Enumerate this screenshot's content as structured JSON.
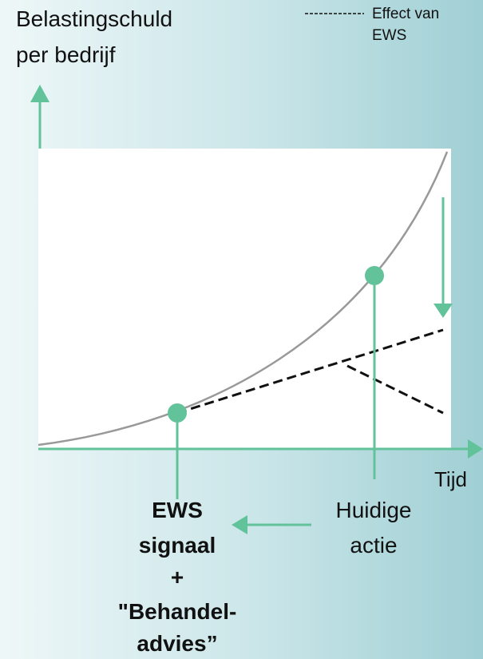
{
  "axis": {
    "y_label": [
      "Belastingschuld",
      "per bedrijf"
    ],
    "x_label": "Tijd"
  },
  "legend": {
    "label": [
      "Effect van",
      "EWS"
    ]
  },
  "annotations": {
    "ews": [
      "EWS",
      "signaal",
      "+",
      "\"Behandel-",
      "advies”"
    ],
    "current": [
      "Huidige",
      "actie"
    ]
  }
}
